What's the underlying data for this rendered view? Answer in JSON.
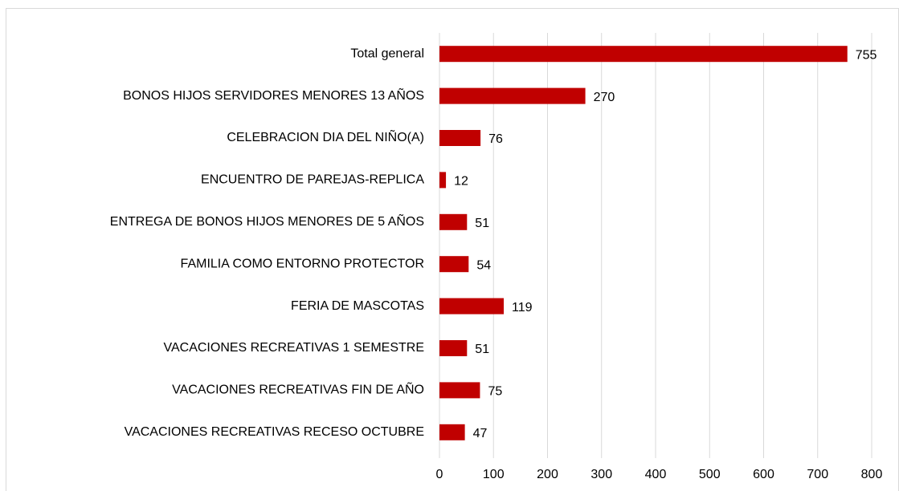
{
  "chart_data": {
    "type": "bar",
    "orientation": "horizontal",
    "categories": [
      "Total general",
      "BONOS HIJOS SERVIDORES MENORES 13 AÑOS",
      "CELEBRACION DIA DEL NIÑO(A)",
      "ENCUENTRO DE PAREJAS-REPLICA",
      "ENTREGA DE BONOS HIJOS MENORES DE 5 AÑOS",
      "FAMILIA COMO ENTORNO PROTECTOR",
      "FERIA DE MASCOTAS",
      "VACACIONES RECREATIVAS  1 SEMESTRE",
      "VACACIONES RECREATIVAS FIN DE AÑO",
      "VACACIONES RECREATIVAS RECESO OCTUBRE"
    ],
    "values": [
      755,
      270,
      76,
      12,
      51,
      54,
      119,
      51,
      75,
      47
    ],
    "color": "#c00000",
    "xlim": [
      0,
      800
    ],
    "xticks": [
      0,
      100,
      200,
      300,
      400,
      500,
      600,
      700,
      800
    ],
    "grid": true
  }
}
